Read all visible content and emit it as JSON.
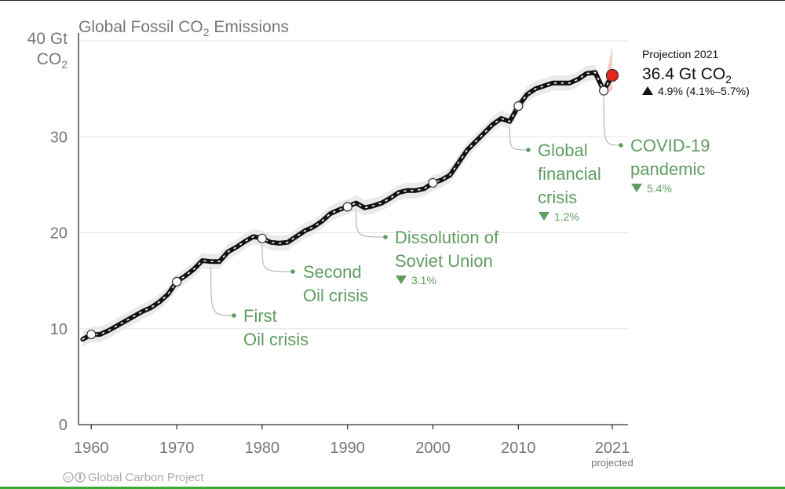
{
  "chart_data": {
    "type": "line",
    "title": "Global Fossil CO",
    "title_sub": "2",
    "title_rest": " Emissions",
    "ylabel_line1": "40 Gt",
    "ylabel_line2": "CO",
    "ylabel_sub": "2",
    "xlim": [
      1959,
      2022
    ],
    "ylim": [
      0,
      40
    ],
    "y_ticks": [
      0,
      10,
      20,
      30
    ],
    "x_ticks": [
      {
        "value": 1960,
        "label": "1960"
      },
      {
        "value": 1970,
        "label": "1970"
      },
      {
        "value": 1980,
        "label": "1980"
      },
      {
        "value": 1990,
        "label": "1990"
      },
      {
        "value": 2000,
        "label": "2000"
      },
      {
        "value": 2010,
        "label": "2010"
      },
      {
        "value": 2021,
        "label": "2021"
      }
    ],
    "projected_label": "projected",
    "grid": true,
    "series": [
      {
        "name": "Global fossil CO2 emissions",
        "color": "#111111",
        "x": [
          1959,
          1960,
          1961,
          1962,
          1963,
          1964,
          1965,
          1966,
          1967,
          1968,
          1969,
          1970,
          1971,
          1972,
          1973,
          1974,
          1975,
          1976,
          1977,
          1978,
          1979,
          1980,
          1981,
          1982,
          1983,
          1984,
          1985,
          1986,
          1987,
          1988,
          1989,
          1990,
          1991,
          1992,
          1993,
          1994,
          1995,
          1996,
          1997,
          1998,
          1999,
          2000,
          2001,
          2002,
          2003,
          2004,
          2005,
          2006,
          2007,
          2008,
          2009,
          2010,
          2011,
          2012,
          2013,
          2014,
          2015,
          2016,
          2017,
          2018,
          2019,
          2020,
          2021
        ],
        "values": [
          8.9,
          9.4,
          9.4,
          9.8,
          10.3,
          10.8,
          11.3,
          11.8,
          12.2,
          12.8,
          13.6,
          14.9,
          15.5,
          16.2,
          17.1,
          17.0,
          17.0,
          18.0,
          18.5,
          19.1,
          19.6,
          19.4,
          19.0,
          18.9,
          19.0,
          19.6,
          20.2,
          20.6,
          21.2,
          22.0,
          22.4,
          22.7,
          23.1,
          22.6,
          22.8,
          23.1,
          23.6,
          24.2,
          24.4,
          24.4,
          24.6,
          25.2,
          25.5,
          26.0,
          27.3,
          28.6,
          29.5,
          30.4,
          31.3,
          31.9,
          31.6,
          33.2,
          34.4,
          35.0,
          35.3,
          35.6,
          35.6,
          35.6,
          36.0,
          36.6,
          36.7,
          34.8,
          36.4
        ],
        "milestones": [
          1960,
          1970,
          1980,
          1990,
          2000,
          2010,
          2020
        ],
        "uncertainty": 0.8
      }
    ],
    "annotations": [
      {
        "lines": [
          "First",
          "Oil crisis"
        ],
        "year": 1974,
        "value": 17.0,
        "pct": ""
      },
      {
        "lines": [
          "Second",
          "Oil crisis"
        ],
        "year": 1980,
        "value": 19.4,
        "pct": ""
      },
      {
        "lines": [
          "Dissolution of",
          "Soviet Union"
        ],
        "year": 1991,
        "value": 23.1,
        "pct": "3.1%"
      },
      {
        "lines": [
          "Global",
          "financial",
          "crisis"
        ],
        "year": 2009,
        "value": 31.6,
        "pct": "1.2%"
      },
      {
        "lines": [
          "COVID-19",
          "pandemic"
        ],
        "year": 2020,
        "value": 34.8,
        "pct": "5.4%"
      }
    ],
    "projection": {
      "year": 2021,
      "value": 36.4,
      "label": "Projection 2021",
      "value_text": "36.4 Gt CO",
      "value_sub": "2",
      "change_text": "4.9% (4.1%–5.7%)",
      "color": "#e8261c"
    },
    "credit": "Global Carbon Project",
    "colors": {
      "line": "#111111",
      "band": "#e8e8e8",
      "annotation": "#5f9c60",
      "axis_text": "#777777",
      "grid": "#e6e6e6",
      "projection": "#e8261c"
    }
  }
}
